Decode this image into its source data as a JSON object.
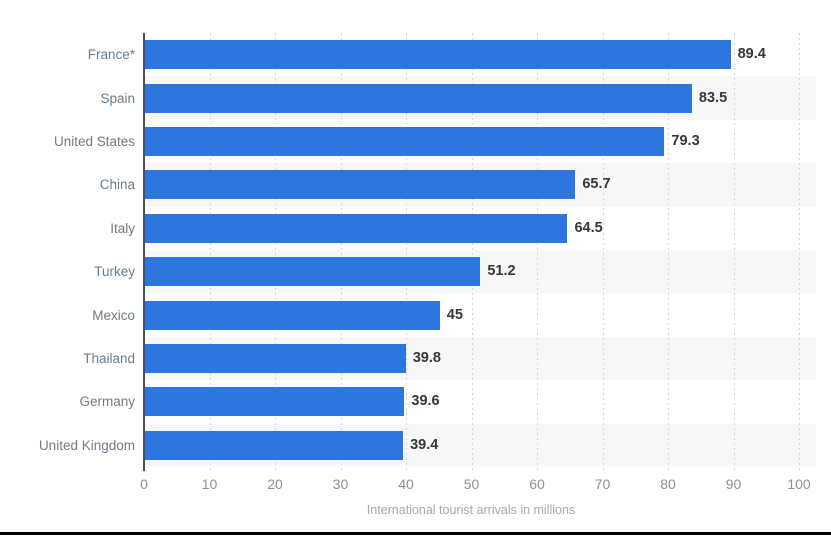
{
  "chart_data": {
    "type": "bar",
    "orientation": "horizontal",
    "categories": [
      "France*",
      "Spain",
      "United States",
      "China",
      "Italy",
      "Turkey",
      "Mexico",
      "Thailand",
      "Germany",
      "United Kingdom"
    ],
    "values": [
      89.4,
      83.5,
      79.3,
      65.7,
      64.5,
      51.2,
      45,
      39.8,
      39.6,
      39.4
    ],
    "value_labels": [
      "89.4",
      "83.5",
      "79.3",
      "65.7",
      "64.5",
      "51.2",
      "45",
      "39.8",
      "39.6",
      "39.4"
    ],
    "title": "",
    "xlabel": "International tourist arrivals in millions",
    "ylabel": "",
    "xlim": [
      0,
      100
    ],
    "xticks": [
      0,
      10,
      20,
      30,
      40,
      50,
      60,
      70,
      80,
      90,
      100
    ],
    "grid": true,
    "gridline_style": "dashed",
    "legend": false,
    "colors": {
      "bar": "#2d76dd",
      "row_band": "#f7f7f7",
      "axis_line": "#4e4e4e",
      "gridline": "#d6d6d6",
      "category_label": "#6d7b88",
      "value_label": "#33373a",
      "tick_label": "#8a9095",
      "axis_title": "#a3a9ae",
      "bottom_rule": "#000000"
    }
  }
}
